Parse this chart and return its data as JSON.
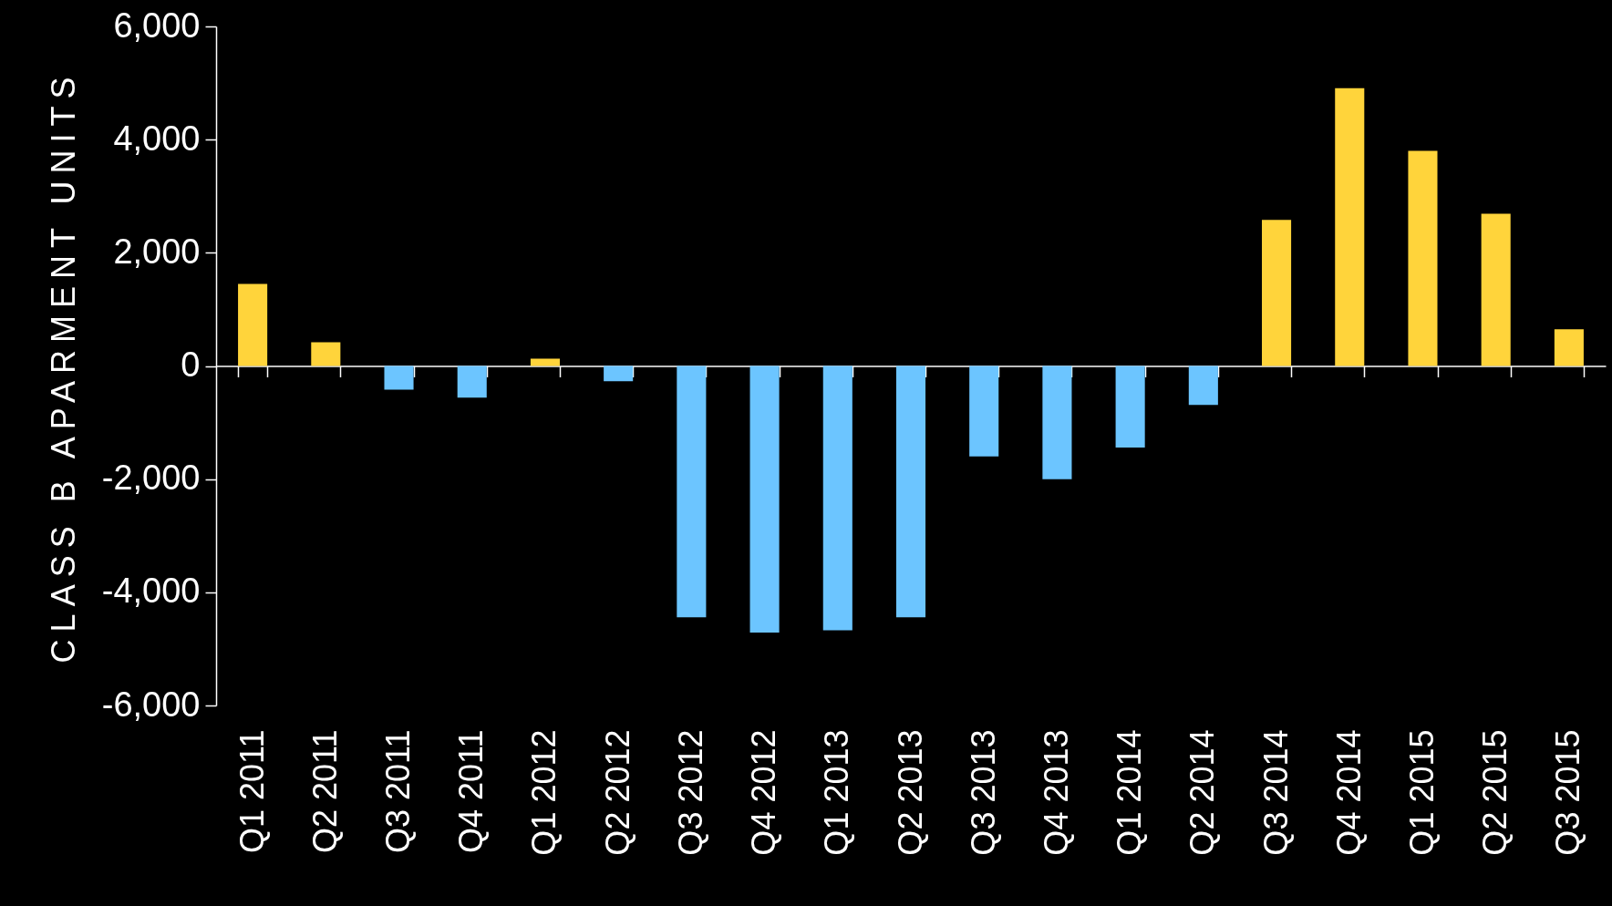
{
  "chart_data": {
    "type": "bar",
    "ylabel": "CLASS B APARMENT UNITS",
    "categories": [
      "Q1 2011",
      "Q2 2011",
      "Q3 2011",
      "Q4 2011",
      "Q1 2012",
      "Q2 2012",
      "Q3 2012",
      "Q4 2012",
      "Q1 2013",
      "Q2 2013",
      "Q3 2013",
      "Q4 2013",
      "Q1 2014",
      "Q2 2014",
      "Q3 2014",
      "Q4 2014",
      "Q1 2015",
      "Q2 2015",
      "Q3 2015"
    ],
    "values": [
      1450,
      420,
      -420,
      -560,
      130,
      -270,
      -4440,
      -4710,
      -4670,
      -4440,
      -1600,
      -2000,
      -1440,
      -690,
      2580,
      4910,
      3800,
      2690,
      650
    ],
    "colors": [
      "#ffd43b",
      "#ffd43b",
      "#6cc5ff",
      "#6cc5ff",
      "#ffd43b",
      "#6cc5ff",
      "#6cc5ff",
      "#6cc5ff",
      "#6cc5ff",
      "#6cc5ff",
      "#6cc5ff",
      "#6cc5ff",
      "#6cc5ff",
      "#6cc5ff",
      "#ffd43b",
      "#ffd43b",
      "#ffd43b",
      "#ffd43b",
      "#ffd43b"
    ],
    "ylim": [
      -6000,
      6000
    ],
    "yticks": [
      {
        "value": -6000,
        "label": "-6,000"
      },
      {
        "value": -4000,
        "label": "-4,000"
      },
      {
        "value": -2000,
        "label": "-2,000"
      },
      0,
      {
        "value": 2000,
        "label": "2,000"
      },
      {
        "value": 4000,
        "label": "4,000"
      },
      {
        "value": 6000,
        "label": "6,000"
      }
    ]
  }
}
